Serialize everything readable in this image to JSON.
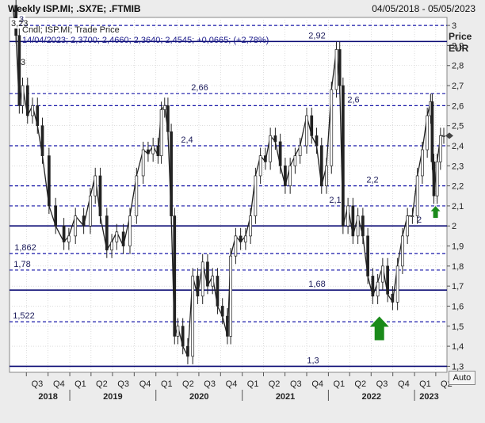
{
  "header": {
    "title": "Weekly ISP.MI; .SX7E; .FTMIB",
    "date_range": "04/05/2018 - 05/05/2023"
  },
  "axis": {
    "title_line1": "Price",
    "title_line2": "EUR",
    "y_ticks": [
      "3",
      "2,9",
      "2,8",
      "2,7",
      "2,6",
      "2,5",
      "2,4",
      "2,3",
      "2,2",
      "2,1",
      "2",
      "1,9",
      "1,8",
      "1,7",
      "1,6",
      "1,5",
      "1,4",
      "1,3"
    ],
    "auto_label": "Auto"
  },
  "legend": {
    "top_value": "3,23",
    "line1": "Cndl; ISP.MI; Trade Price",
    "line2": "14/04/2023; 2,3700; 2,4660; 2,3640; 2,4545; +0,0665; (+2,78%)",
    "small_label_3": "3"
  },
  "colors": {
    "solid_level": "#0b0b74",
    "dashed_level": "#1616a8",
    "candle": "#222222",
    "arrow": "#1a8a1a",
    "plot_bg": "#ffffff",
    "frame_bg": "#ececec"
  },
  "chart_data": {
    "type": "candlestick",
    "title": "Weekly ISP.MI; .SX7E; .FTMIB",
    "ylabel": "Price EUR",
    "ylim": [
      1.27,
      3.04
    ],
    "x_range": [
      "2018-05-04",
      "2023-05-05"
    ],
    "x_quarter_labels": [
      "Q3",
      "Q4",
      "Q1",
      "Q2",
      "Q3",
      "Q4",
      "Q1",
      "Q2",
      "Q3",
      "Q4",
      "Q1",
      "Q2",
      "Q3",
      "Q4",
      "Q1",
      "Q2",
      "Q3",
      "Q4",
      "Q1",
      "Q2"
    ],
    "x_year_labels": [
      "2018",
      "2019",
      "2020",
      "2021",
      "2022",
      "2023"
    ],
    "series": [
      {
        "type": "close_line_weekly",
        "points": [
          [
            "2018-05-04",
            3.1
          ],
          [
            "2018-05-18",
            2.95
          ],
          [
            "2018-06-01",
            2.6
          ],
          [
            "2018-06-15",
            2.7
          ],
          [
            "2018-07-06",
            2.55
          ],
          [
            "2018-07-27",
            2.6
          ],
          [
            "2018-08-17",
            2.5
          ],
          [
            "2018-09-07",
            2.35
          ],
          [
            "2018-10-05",
            2.1
          ],
          [
            "2018-11-02",
            2.0
          ],
          [
            "2018-12-07",
            1.92
          ],
          [
            "2018-12-28",
            1.95
          ],
          [
            "2019-01-25",
            2.05
          ],
          [
            "2019-03-01",
            2.0
          ],
          [
            "2019-03-29",
            2.15
          ],
          [
            "2019-04-19",
            2.25
          ],
          [
            "2019-05-10",
            2.05
          ],
          [
            "2019-06-07",
            1.88
          ],
          [
            "2019-06-28",
            1.92
          ],
          [
            "2019-07-19",
            1.97
          ],
          [
            "2019-08-16",
            1.9
          ],
          [
            "2019-09-13",
            2.05
          ],
          [
            "2019-10-11",
            2.25
          ],
          [
            "2019-11-08",
            2.38
          ],
          [
            "2019-11-29",
            2.36
          ],
          [
            "2019-12-20",
            2.4
          ],
          [
            "2020-01-10",
            2.35
          ],
          [
            "2020-01-24",
            2.58
          ],
          [
            "2020-02-07",
            2.6
          ],
          [
            "2020-02-21",
            2.47
          ],
          [
            "2020-03-06",
            2.05
          ],
          [
            "2020-03-20",
            1.45
          ],
          [
            "2020-04-03",
            1.5
          ],
          [
            "2020-04-24",
            1.4
          ],
          [
            "2020-05-15",
            1.35
          ],
          [
            "2020-06-05",
            1.75
          ],
          [
            "2020-06-26",
            1.65
          ],
          [
            "2020-07-17",
            1.82
          ],
          [
            "2020-08-07",
            1.7
          ],
          [
            "2020-08-28",
            1.75
          ],
          [
            "2020-09-18",
            1.6
          ],
          [
            "2020-10-09",
            1.55
          ],
          [
            "2020-10-30",
            1.45
          ],
          [
            "2020-11-13",
            1.85
          ],
          [
            "2020-12-04",
            1.95
          ],
          [
            "2020-12-25",
            1.92
          ],
          [
            "2021-01-15",
            1.95
          ],
          [
            "2021-02-05",
            2.05
          ],
          [
            "2021-02-26",
            2.25
          ],
          [
            "2021-03-19",
            2.35
          ],
          [
            "2021-04-09",
            2.32
          ],
          [
            "2021-04-30",
            2.45
          ],
          [
            "2021-05-21",
            2.42
          ],
          [
            "2021-06-11",
            2.3
          ],
          [
            "2021-07-02",
            2.2
          ],
          [
            "2021-07-23",
            2.3
          ],
          [
            "2021-08-13",
            2.35
          ],
          [
            "2021-09-03",
            2.4
          ],
          [
            "2021-10-01",
            2.55
          ],
          [
            "2021-10-22",
            2.45
          ],
          [
            "2021-11-12",
            2.4
          ],
          [
            "2021-12-03",
            2.2
          ],
          [
            "2021-12-24",
            2.3
          ],
          [
            "2022-01-14",
            2.68
          ],
          [
            "2022-02-04",
            2.88
          ],
          [
            "2022-02-18",
            2.7
          ],
          [
            "2022-03-04",
            2.0
          ],
          [
            "2022-03-25",
            2.1
          ],
          [
            "2022-04-15",
            1.95
          ],
          [
            "2022-05-06",
            2.05
          ],
          [
            "2022-05-27",
            1.95
          ],
          [
            "2022-06-17",
            1.75
          ],
          [
            "2022-07-08",
            1.65
          ],
          [
            "2022-07-29",
            1.72
          ],
          [
            "2022-08-19",
            1.8
          ],
          [
            "2022-09-09",
            1.66
          ],
          [
            "2022-09-30",
            1.62
          ],
          [
            "2022-10-21",
            1.8
          ],
          [
            "2022-11-11",
            1.95
          ],
          [
            "2022-12-02",
            2.05
          ],
          [
            "2022-12-23",
            2.05
          ],
          [
            "2023-01-13",
            2.25
          ],
          [
            "2023-02-03",
            2.38
          ],
          [
            "2023-02-24",
            2.55
          ],
          [
            "2023-03-10",
            2.62
          ],
          [
            "2023-03-17",
            2.32
          ],
          [
            "2023-03-24",
            2.15
          ],
          [
            "2023-04-07",
            2.32
          ],
          [
            "2023-04-21",
            2.45
          ],
          [
            "2023-05-05",
            2.45
          ]
        ]
      }
    ],
    "levels": [
      {
        "value": 2.92,
        "style": "solid",
        "label": "2,92"
      },
      {
        "value": 2.66,
        "style": "dashed",
        "label": "2,66"
      },
      {
        "value": 2.6,
        "style": "dashed",
        "label": "2,6"
      },
      {
        "value": 2.4,
        "style": "dashed",
        "label": "2,4"
      },
      {
        "value": 2.2,
        "style": "dashed",
        "label": "2,2"
      },
      {
        "value": 2.1,
        "style": "dashed",
        "label": "2,1"
      },
      {
        "value": 2.0,
        "style": "solid",
        "label": "2"
      },
      {
        "value": 1.862,
        "style": "dashed",
        "label": "1,862"
      },
      {
        "value": 1.78,
        "style": "dashed",
        "label": "1,78"
      },
      {
        "value": 1.68,
        "style": "solid",
        "label": "1,68"
      },
      {
        "value": 1.522,
        "style": "dashed",
        "label": "1,522"
      },
      {
        "value": 1.3,
        "style": "solid",
        "label": "1,3"
      },
      {
        "value": 3.0,
        "style": "dashed",
        "label": "3"
      }
    ],
    "arrows": [
      {
        "date": "2022-08-05",
        "value": 1.43,
        "direction": "up",
        "size": "large"
      },
      {
        "date": "2023-03-31",
        "value": 2.04,
        "direction": "up",
        "size": "small"
      }
    ],
    "grid": true
  }
}
